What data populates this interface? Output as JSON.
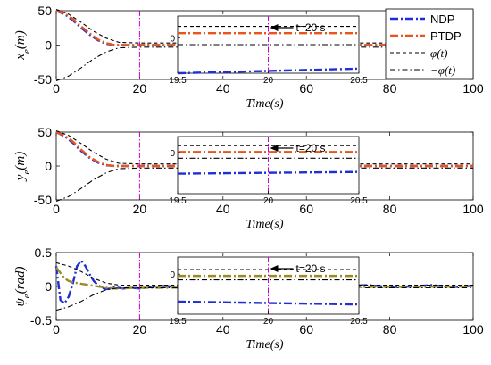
{
  "colors": {
    "ndp": "#1f2fd6",
    "ptdp": "#e8541a",
    "bound": "#000000",
    "marker": "#d000d0",
    "yaw_mixed": "#9a8a24"
  },
  "legend": {
    "placement": "top-right",
    "entries": [
      {
        "label": "NDP",
        "style": "dash-dot",
        "color": "#1f2fd6"
      },
      {
        "label": "PTDP",
        "style": "dash-dot",
        "color": "#e8541a"
      },
      {
        "label": "φ(t)",
        "style": "dashed",
        "color": "#000000"
      },
      {
        "label": "−φ(t)",
        "style": "dash-dot",
        "color": "#000000"
      }
    ]
  },
  "chart_data": [
    {
      "type": "line",
      "ylabel": "x_e(m)",
      "xlabel": "Time(s)",
      "xlim": [
        0,
        100
      ],
      "ylim": [
        -50,
        50
      ],
      "xticks": [
        "0",
        "20",
        "40",
        "60",
        "80",
        "100"
      ],
      "yticks": [
        "-50",
        "0",
        "50"
      ],
      "vline_x": 20,
      "series": [
        {
          "name": "NDP",
          "x": [
            0,
            2,
            4,
            6,
            8,
            10,
            12,
            14,
            100
          ],
          "y": [
            50,
            45,
            36,
            25,
            15,
            7,
            2,
            0,
            0
          ]
        },
        {
          "name": "PTDP",
          "x": [
            0,
            2,
            4,
            6,
            8,
            10,
            12,
            14,
            100
          ],
          "y": [
            50,
            46,
            38,
            27,
            17,
            8,
            3,
            0,
            0
          ]
        },
        {
          "name": "φ(t)",
          "x": [
            0,
            3,
            6,
            9,
            12,
            15,
            20,
            100
          ],
          "y": [
            52,
            45,
            33,
            20,
            10,
            4,
            3,
            3
          ]
        },
        {
          "name": "−φ(t)",
          "x": [
            0,
            3,
            6,
            9,
            12,
            15,
            20,
            100
          ],
          "y": [
            -52,
            -45,
            -33,
            -20,
            -10,
            -4,
            -3,
            -3
          ]
        }
      ],
      "inset": {
        "xlim": [
          19.5,
          20.5
        ],
        "xticks": [
          "19.5",
          "20",
          "20.5"
        ],
        "ytick": "0",
        "annotation": "t=20 s",
        "levels": {
          "phi": 0.82,
          "ptdp": 0.7,
          "zero": 0.62,
          "neg_phi": 0.5,
          "ndp_start": 0.0,
          "ndp_end": 0.08
        }
      }
    },
    {
      "type": "line",
      "ylabel": "y_e(m)",
      "xlabel": "Time(s)",
      "xlim": [
        0,
        100
      ],
      "ylim": [
        -50,
        50
      ],
      "xticks": [
        "0",
        "20",
        "40",
        "60",
        "80",
        "100"
      ],
      "yticks": [
        "-50",
        "0",
        "50"
      ],
      "vline_x": 20,
      "series": [
        {
          "name": "NDP",
          "x": [
            0,
            2,
            4,
            6,
            8,
            10,
            12,
            14,
            100
          ],
          "y": [
            50,
            44,
            34,
            22,
            12,
            5,
            1,
            0,
            0
          ]
        },
        {
          "name": "PTDP",
          "x": [
            0,
            2,
            4,
            6,
            8,
            10,
            12,
            14,
            100
          ],
          "y": [
            50,
            45,
            36,
            24,
            13,
            6,
            1.5,
            0,
            0
          ]
        },
        {
          "name": "φ(t)",
          "x": [
            0,
            3,
            6,
            9,
            12,
            15,
            20,
            100
          ],
          "y": [
            52,
            45,
            33,
            20,
            10,
            4,
            3,
            3
          ]
        },
        {
          "name": "−φ(t)",
          "x": [
            0,
            3,
            6,
            9,
            12,
            15,
            20,
            100
          ],
          "y": [
            -52,
            -45,
            -33,
            -20,
            -10,
            -4,
            -3,
            -3
          ]
        }
      ],
      "inset": {
        "xlim": [
          19.5,
          20.5
        ],
        "xticks": [
          "19.5",
          "20",
          "20.5"
        ],
        "ytick": "0",
        "annotation": "t=20 s",
        "levels": {
          "phi": 0.84,
          "ptdp": 0.73,
          "zero": 0.72,
          "neg_phi": 0.62,
          "ndp_start": 0.35,
          "ndp_end": 0.38
        }
      }
    },
    {
      "type": "line",
      "ylabel": "ψ_e(rad)",
      "xlabel": "Time(s)",
      "xlim": [
        0,
        100
      ],
      "ylim": [
        -0.5,
        0.5
      ],
      "xticks": [
        "0",
        "20",
        "40",
        "60",
        "80",
        "100"
      ],
      "yticks": [
        "-0.5",
        "0",
        "0.5"
      ],
      "vline_x": 20,
      "series": [
        {
          "name": "NDP",
          "x": [
            0,
            1,
            2,
            3,
            4,
            5,
            6,
            7,
            8,
            9,
            10,
            11,
            12,
            13,
            14,
            16,
            18,
            20,
            25,
            30,
            35,
            40,
            45,
            50,
            55,
            60,
            65,
            70,
            75,
            80,
            85,
            90,
            95,
            100
          ],
          "y": [
            0.3,
            -0.2,
            -0.25,
            -0.15,
            0.05,
            0.3,
            0.38,
            0.3,
            0.18,
            0.08,
            0.02,
            -0.02,
            -0.04,
            -0.03,
            -0.01,
            -0.03,
            -0.02,
            -0.03,
            0.01,
            -0.01,
            0.02,
            -0.01,
            0.01,
            -0.02,
            0.02,
            0.0,
            -0.02,
            0.01,
            0.02,
            -0.01,
            0.0,
            0.02,
            -0.01,
            0.01
          ]
        },
        {
          "name": "PTDP",
          "x": [
            0,
            1,
            2,
            3,
            4,
            6,
            8,
            10,
            12,
            14,
            16,
            18,
            20,
            100
          ],
          "y": [
            0.28,
            0.2,
            0.12,
            0.08,
            0.06,
            0.04,
            0.02,
            0.0,
            -0.02,
            -0.03,
            -0.03,
            -0.02,
            -0.02,
            0.0
          ]
        },
        {
          "name": "φ(t)",
          "x": [
            0,
            3,
            6,
            9,
            12,
            15,
            20,
            100
          ],
          "y": [
            0.35,
            0.3,
            0.22,
            0.12,
            0.05,
            0.02,
            0.02,
            0.02
          ]
        },
        {
          "name": "−φ(t)",
          "x": [
            0,
            3,
            6,
            9,
            12,
            15,
            20,
            100
          ],
          "y": [
            -0.35,
            -0.3,
            -0.22,
            -0.12,
            -0.05,
            -0.02,
            -0.02,
            -0.02
          ]
        }
      ],
      "inset": {
        "xlim": [
          19.5,
          20.5
        ],
        "xticks": [
          "19.5",
          "20",
          "20.5"
        ],
        "ytick": "0",
        "annotation": "t=20 s",
        "levels": {
          "phi": 0.78,
          "ptdp": 0.67,
          "zero": 0.7,
          "neg_phi": 0.6,
          "ndp_start": 0.22,
          "ndp_end": 0.17
        }
      }
    }
  ]
}
